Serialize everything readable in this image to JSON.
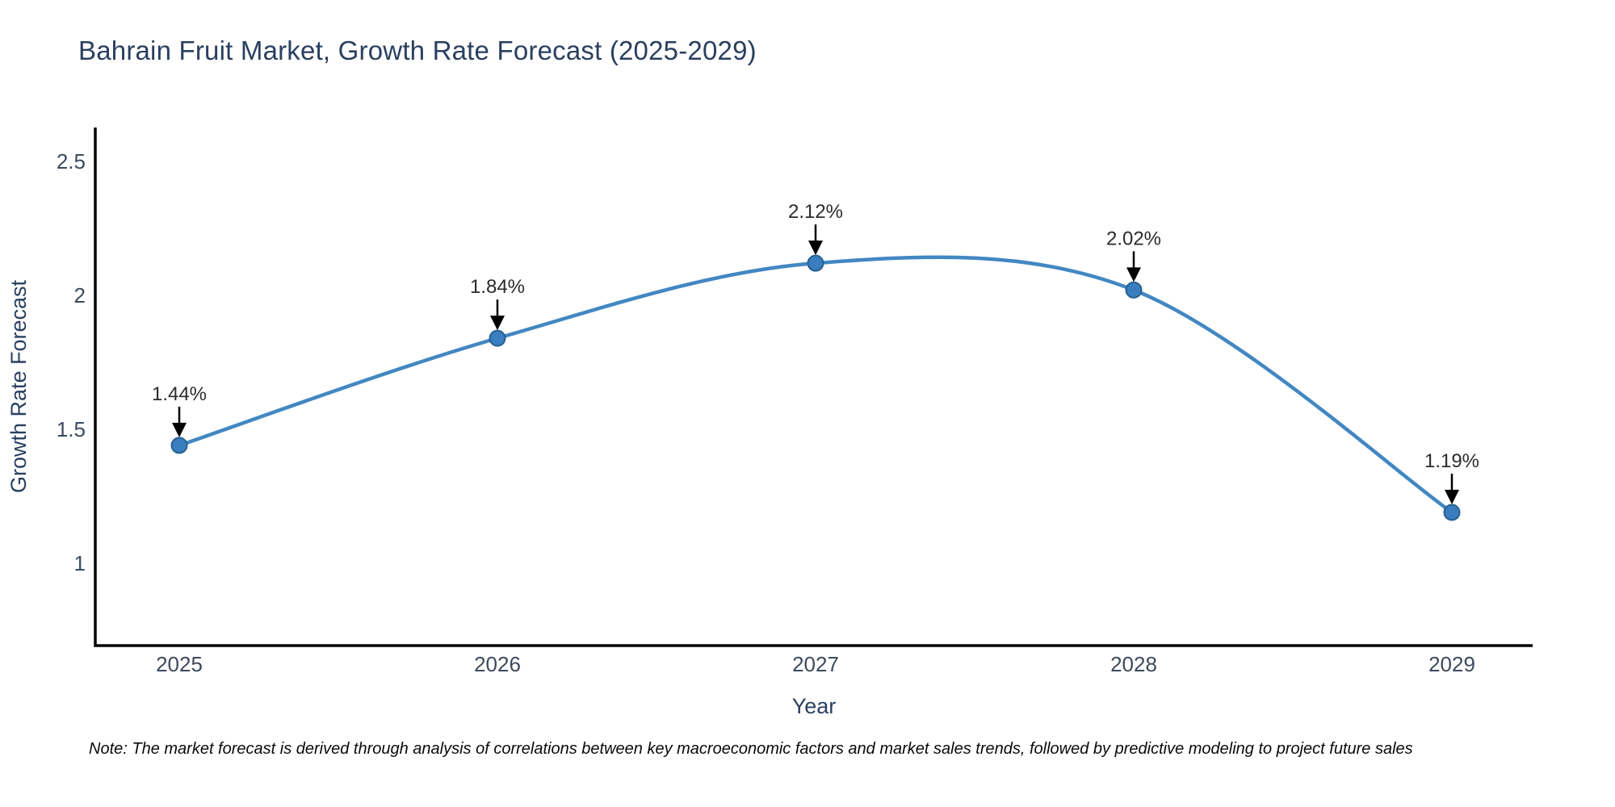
{
  "title": "Bahrain Fruit Market, Growth Rate Forecast (2025-2029)",
  "note": "Note: The market forecast is derived through analysis of correlations between key macroeconomic factors and market sales trends, followed by predictive modeling to project future sales",
  "chart_data": {
    "type": "line",
    "title": "Bahrain Fruit Market, Growth Rate Forecast (2025-2029)",
    "xlabel": "Year",
    "ylabel": "Growth Rate Forecast",
    "categories": [
      "2025",
      "2026",
      "2027",
      "2028",
      "2029"
    ],
    "x": [
      2025,
      2026,
      2027,
      2028,
      2029
    ],
    "values": [
      1.44,
      1.84,
      2.12,
      2.02,
      1.19
    ],
    "point_labels": [
      "1.44%",
      "1.84%",
      "2.12%",
      "2.02%",
      "1.19%"
    ],
    "yticks": [
      1,
      1.5,
      2,
      2.5
    ],
    "ytick_labels": [
      "1",
      "1.5",
      "2",
      "2.5"
    ],
    "ylim": [
      0.69,
      2.73
    ],
    "line_shape": "spline",
    "grid": false,
    "legend_position": "none",
    "colors": {
      "line": "#4287c2",
      "marker_fill": "#3a7ebf",
      "marker_edge": "#27618f",
      "axis": "#000000",
      "title_text": "#2a3f5f",
      "tick_text": "#3d4a5c",
      "annotation_text": "#2b2b2b",
      "arrow": "#000000",
      "background": "#ffffff"
    }
  }
}
